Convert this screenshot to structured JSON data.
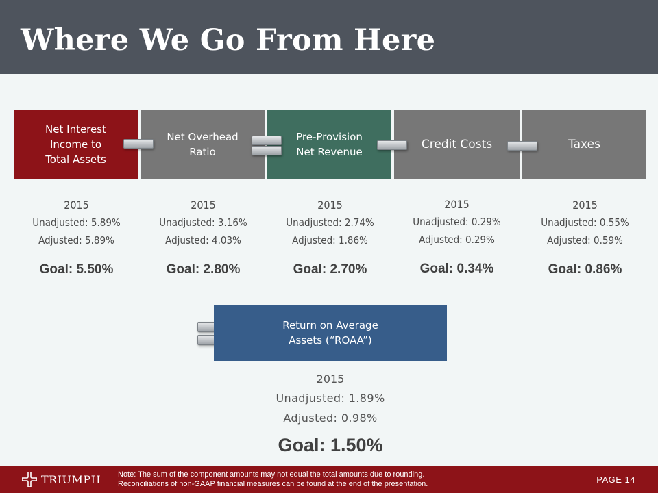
{
  "header": {
    "title": "Where We Go From Here"
  },
  "components": [
    {
      "label": "Net Interest\nIncome to\nTotal Assets",
      "year": "2015",
      "unadjusted": "Unadjusted: 5.89%",
      "adjusted": "Adjusted: 5.89%",
      "goal": "Goal: 5.50%",
      "color": "#8d1318"
    },
    {
      "label": "Net Overhead\nRatio",
      "year": "2015",
      "unadjusted": "Unadjusted: 3.16%",
      "adjusted": "Adjusted: 4.03%",
      "goal": "Goal: 2.80%",
      "color": "#777777"
    },
    {
      "label": "Pre-Provision\nNet Revenue",
      "year": "2015",
      "unadjusted": "Unadjusted: 2.74%",
      "adjusted": "Adjusted: 1.86%",
      "goal": "Goal: 2.70%",
      "color": "#3f6e5f"
    },
    {
      "label": "Credit Costs",
      "year": "2015",
      "unadjusted": "Unadjusted: 0.29%",
      "adjusted": "Adjusted: 0.29%",
      "goal": "Goal: 0.34%",
      "color": "#777777"
    },
    {
      "label": "Taxes",
      "year": "2015",
      "unadjusted": "Unadjusted: 0.55%",
      "adjusted": "Adjusted: 0.59%",
      "goal": "Goal: 0.86%",
      "color": "#777777"
    }
  ],
  "operators": [
    "minus-icon",
    "equals-icon",
    "minus-icon",
    "minus-icon",
    "equals-icon"
  ],
  "result": {
    "label": "Return on Average\nAssets (“ROAA”)",
    "year": "2015",
    "unadjusted": "Unadjusted: 1.89%",
    "adjusted": "Adjusted: 0.98%",
    "goal": "Goal: 1.50%",
    "color": "#375d8a"
  },
  "footer": {
    "logo_text": "TRIUMPH",
    "note_line1": "Note: The sum of the component amounts may not equal the total amounts due to rounding.",
    "note_line2": "Reconciliations of non-GAAP financial measures can be found at the end of the presentation.",
    "page": "PAGE 14",
    "color": "#8d1318"
  }
}
